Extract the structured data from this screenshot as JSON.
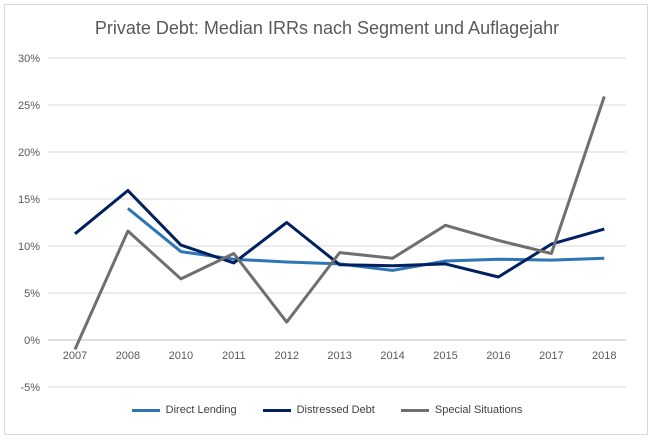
{
  "chart_data": {
    "type": "line",
    "title": "Private Debt: Median IRRs nach Segment und Auflagejahr",
    "xlabel": "",
    "ylabel": "",
    "categories": [
      "2007",
      "2008",
      "2010",
      "2011",
      "2012",
      "2013",
      "2014",
      "2015",
      "2016",
      "2017",
      "2018"
    ],
    "ylim": [
      -0.05,
      0.3
    ],
    "yticks": [
      -0.05,
      0,
      0.05,
      0.1,
      0.15,
      0.2,
      0.25,
      0.3
    ],
    "ytick_labels": [
      "-5%",
      "0%",
      "5%",
      "10%",
      "15%",
      "20%",
      "25%",
      "30%"
    ],
    "grid": true,
    "legend_position": "bottom",
    "series": [
      {
        "name": "Direct Lending",
        "color": "#2e75b6",
        "values": [
          null,
          0.14,
          0.094,
          0.086,
          0.083,
          0.081,
          0.074,
          0.084,
          0.086,
          0.085,
          0.087
        ]
      },
      {
        "name": "Distressed Debt",
        "color": "#002060",
        "values": [
          0.113,
          0.159,
          0.101,
          0.082,
          0.125,
          0.08,
          0.079,
          0.081,
          0.067,
          0.102,
          0.118
        ]
      },
      {
        "name": "Special Situations",
        "color": "#6f6f6f",
        "values": [
          -0.01,
          0.116,
          0.065,
          0.092,
          0.019,
          0.093,
          0.087,
          0.122,
          0.106,
          0.092,
          0.259
        ]
      }
    ]
  }
}
